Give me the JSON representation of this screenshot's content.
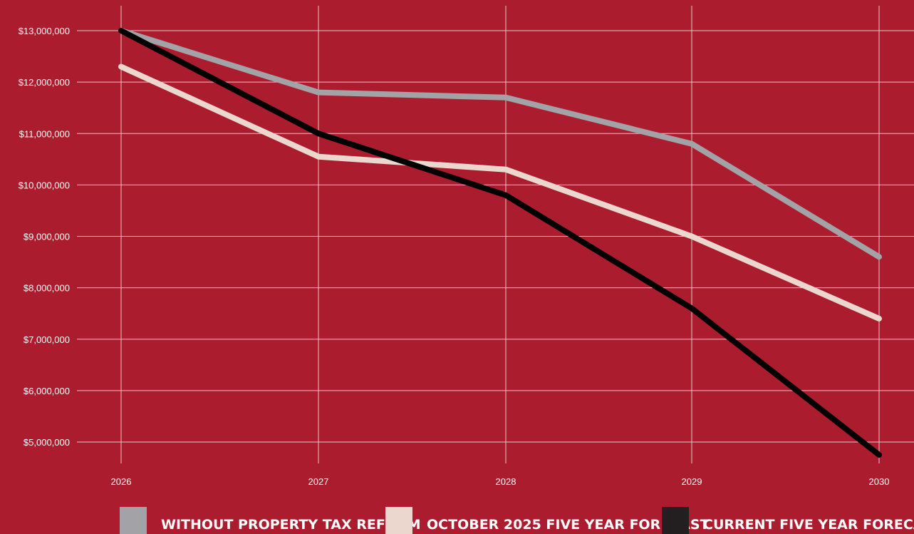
{
  "chart_data": {
    "type": "line",
    "x": [
      "2026",
      "2027",
      "2028",
      "2029",
      "2030"
    ],
    "ylim": [
      5000000,
      13000000
    ],
    "y_ticks": [
      "$5,000,000",
      "$6,000,000",
      "$7,000,000",
      "$8,000,000",
      "$9,000,000",
      "$10,000,000",
      "$11,000,000",
      "$12,000,000",
      "$13,000,000"
    ],
    "grid": true,
    "legend_position": "bottom",
    "series": [
      {
        "name": "WITHOUT PROPERTY TAX REFORM",
        "color": "#a3a2a6",
        "values": [
          13000000,
          11800000,
          11700000,
          10800000,
          8600000
        ]
      },
      {
        "name": "OCTOBER 2025 FIVE YEAR FORECAST",
        "color": "#ecd7cf",
        "values": [
          12300000,
          10550000,
          10300000,
          9000000,
          7400000
        ]
      },
      {
        "name": "CURRENT FIVE YEAR FORECAST",
        "color": "#000000",
        "values": [
          13000000,
          11000000,
          9800000,
          7600000,
          4750000
        ]
      }
    ]
  },
  "legend_colors": {
    "WITHOUT PROPERTY TAX REFORM": "#a3a2a6",
    "OCTOBER 2025 FIVE YEAR FORECAST": "#ecd7cf",
    "CURRENT FIVE YEAR FORECAST": "#231f20"
  },
  "colors": {
    "background": "#ab1c2e",
    "grid": "#e6c3c8",
    "text": "#ffffff"
  }
}
